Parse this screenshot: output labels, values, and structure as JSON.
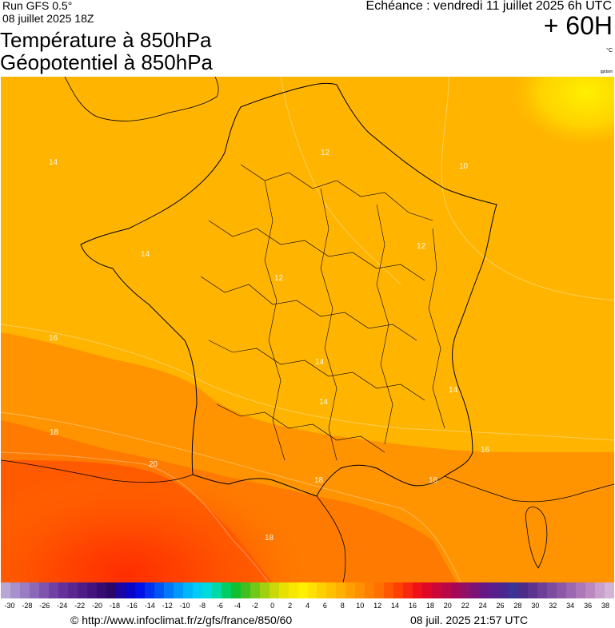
{
  "header": {
    "run": "Run GFS 0.5°",
    "run_date": "08 juillet 2025 18Z",
    "title_line1": "Température à 850hPa",
    "title_line2": "Géopotentiel à 850hPa",
    "echeance": "Echéance : vendredi 11 juillet 2025 6h UTC",
    "lead": "+ 60H",
    "unit": "°C",
    "watermark": "gpdam"
  },
  "map": {
    "isotherm_labels": [
      "10",
      "12",
      "12",
      "12",
      "14",
      "14",
      "14",
      "14",
      "14",
      "16",
      "16",
      "16",
      "18",
      "18",
      "18",
      "20"
    ]
  },
  "scale": {
    "tick_labels": [
      "-30",
      "-28",
      "-26",
      "-24",
      "-22",
      "-20",
      "-18",
      "-16",
      "-14",
      "-12",
      "-10",
      "-8",
      "-6",
      "-4",
      "-2",
      "0",
      "2",
      "4",
      "6",
      "8",
      "10",
      "12",
      "14",
      "16",
      "18",
      "20",
      "22",
      "24",
      "26",
      "28",
      "30",
      "32",
      "34",
      "36",
      "38"
    ],
    "colors": [
      "#b8a6d6",
      "#a890cc",
      "#9a7cc2",
      "#8c68b8",
      "#7e54ae",
      "#7040a4",
      "#64309a",
      "#5a2690",
      "#4e1c86",
      "#42147c",
      "#360c72",
      "#2a0868",
      "#1a06a0",
      "#0a06c8",
      "#0010e6",
      "#0030f0",
      "#0054f4",
      "#0078f8",
      "#0098fa",
      "#00b6fa",
      "#00ccf4",
      "#00dadc",
      "#00d8a8",
      "#00cc66",
      "#10c030",
      "#40c020",
      "#70c818",
      "#a0d010",
      "#c8d808",
      "#e8e000",
      "#f8e800",
      "#fff000",
      "#ffe000",
      "#ffd000",
      "#ffc000",
      "#ffb000",
      "#ffa000",
      "#ff9000",
      "#ff8000",
      "#ff7000",
      "#ff5800",
      "#ff4000",
      "#f82810",
      "#f01018",
      "#e00828",
      "#cc0838",
      "#b80848",
      "#a40858",
      "#901068",
      "#7c1478",
      "#681884",
      "#58208c",
      "#482890",
      "#3a3494",
      "#4c2c88",
      "#5c3490",
      "#6c4098",
      "#7c4ca0",
      "#8c58a8",
      "#9c68b0",
      "#ac78b8",
      "#bc88c0",
      "#c8a0cc",
      "#d4b4d6"
    ]
  },
  "footer": {
    "url": "© http://www.infoclimat.fr/z/gfs/france/850/60",
    "generated": "08 juil. 2025 21:57 UTC"
  }
}
